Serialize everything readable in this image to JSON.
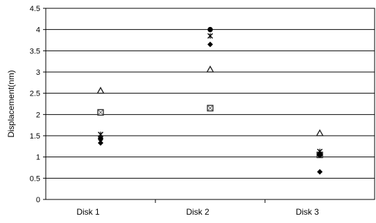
{
  "chart_data": {
    "type": "scatter",
    "title": "",
    "xlabel": "",
    "ylabel": "Displacement(nm)",
    "categories": [
      "Disk 1",
      "Disk 2",
      "Disk 3"
    ],
    "ylim": [
      0,
      4.5
    ],
    "yticks": [
      "0",
      "0.5",
      "1",
      "1.5",
      "2",
      "2.5",
      "3",
      "3.5",
      "4",
      "4.5"
    ],
    "grid": true,
    "legend": "none",
    "series": [
      {
        "marker": "diamond",
        "values": [
          1.33,
          3.65,
          0.65
        ]
      },
      {
        "marker": "square",
        "values": [
          2.05,
          2.15,
          1.05
        ]
      },
      {
        "marker": "triangle",
        "values": [
          2.55,
          3.05,
          1.55
        ]
      },
      {
        "marker": "star",
        "values": [
          1.53,
          3.85,
          1.13
        ]
      },
      {
        "marker": "circle",
        "values": [
          1.43,
          4.0,
          1.05
        ]
      }
    ]
  }
}
